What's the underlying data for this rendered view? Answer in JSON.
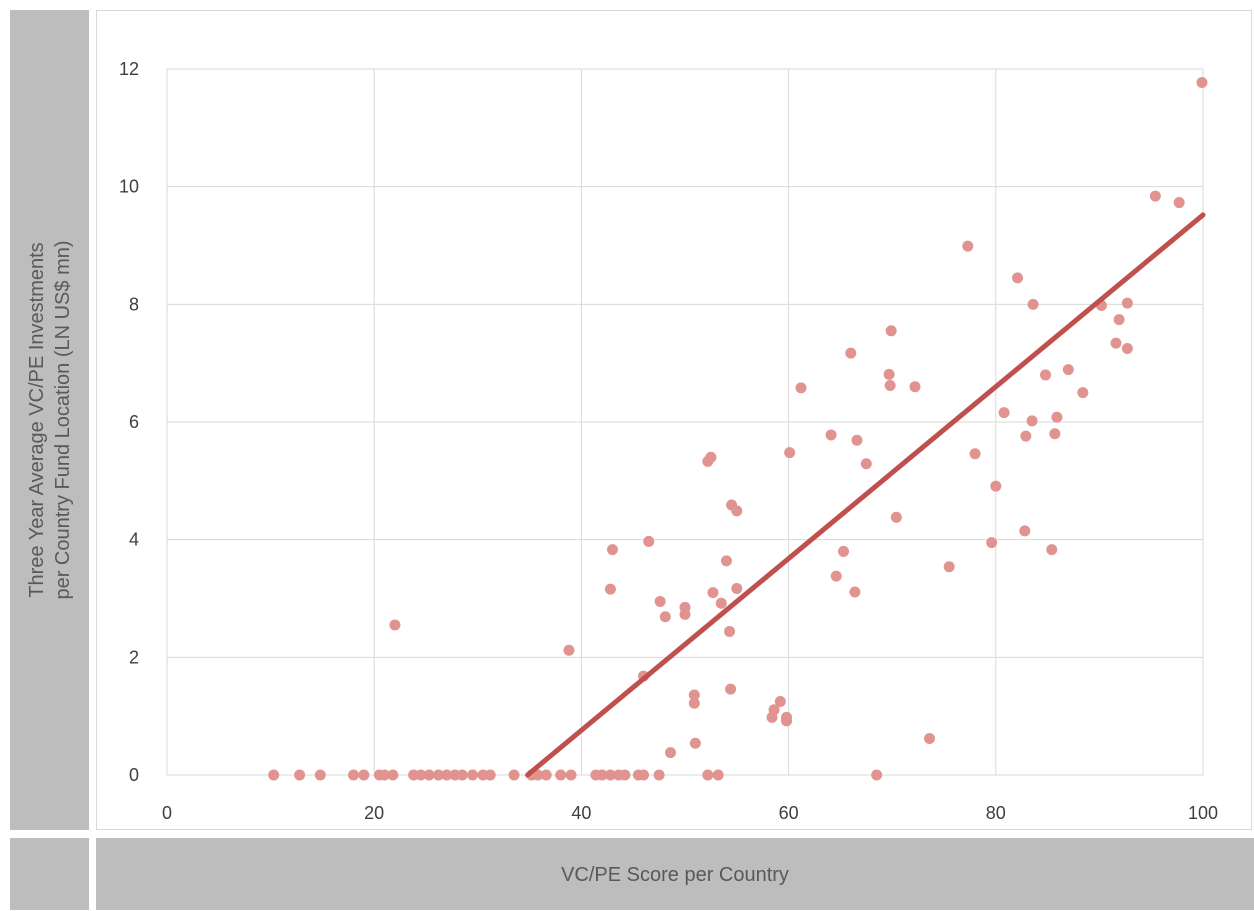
{
  "chart_data": {
    "type": "scatter",
    "xlabel": "VC/PE Score per Country",
    "ylabel_lines": [
      "Three Year Average VC/PE Investments",
      "per Country Fund Location (LN US$ mn)"
    ],
    "xlim": [
      0,
      100
    ],
    "ylim": [
      0,
      12
    ],
    "x_ticks": [
      0,
      20,
      40,
      60,
      80,
      100
    ],
    "y_ticks": [
      0,
      2,
      4,
      6,
      8,
      10,
      12
    ],
    "grid": true,
    "point_color": "#e0938f",
    "trendline_color": "#c0504d",
    "trendline": {
      "x": [
        34.8,
        100
      ],
      "y": [
        0,
        9.52
      ]
    },
    "points": [
      [
        10.3,
        0
      ],
      [
        12.8,
        0
      ],
      [
        14.8,
        0
      ],
      [
        18.0,
        0
      ],
      [
        19.0,
        0
      ],
      [
        20.5,
        0
      ],
      [
        21.0,
        0
      ],
      [
        21.8,
        0
      ],
      [
        23.8,
        0
      ],
      [
        24.5,
        0
      ],
      [
        25.3,
        0
      ],
      [
        26.2,
        0
      ],
      [
        27.0,
        0
      ],
      [
        27.8,
        0
      ],
      [
        28.5,
        0
      ],
      [
        29.5,
        0
      ],
      [
        30.5,
        0
      ],
      [
        31.2,
        0
      ],
      [
        33.5,
        0
      ],
      [
        35.2,
        0
      ],
      [
        35.8,
        0
      ],
      [
        36.6,
        0
      ],
      [
        38.0,
        0
      ],
      [
        39.0,
        0
      ],
      [
        41.4,
        0
      ],
      [
        42.0,
        0
      ],
      [
        42.8,
        0
      ],
      [
        43.6,
        0
      ],
      [
        44.2,
        0
      ],
      [
        45.5,
        0
      ],
      [
        46.0,
        0
      ],
      [
        47.5,
        0
      ],
      [
        52.2,
        0
      ],
      [
        53.2,
        0
      ],
      [
        68.5,
        0
      ],
      [
        22.0,
        2.55
      ],
      [
        38.8,
        2.12
      ],
      [
        42.8,
        3.16
      ],
      [
        43.0,
        3.83
      ],
      [
        46.0,
        1.68
      ],
      [
        46.5,
        3.97
      ],
      [
        47.6,
        2.95
      ],
      [
        48.1,
        2.69
      ],
      [
        48.6,
        0.38
      ],
      [
        50.0,
        2.73
      ],
      [
        50.0,
        2.85
      ],
      [
        50.9,
        1.22
      ],
      [
        50.9,
        1.36
      ],
      [
        51.0,
        0.54
      ],
      [
        52.2,
        5.33
      ],
      [
        52.5,
        5.4
      ],
      [
        52.7,
        3.1
      ],
      [
        53.5,
        2.92
      ],
      [
        54.0,
        3.64
      ],
      [
        54.3,
        2.44
      ],
      [
        54.4,
        1.46
      ],
      [
        54.5,
        4.59
      ],
      [
        55.0,
        4.49
      ],
      [
        55.0,
        3.17
      ],
      [
        58.4,
        0.98
      ],
      [
        58.6,
        1.11
      ],
      [
        59.2,
        1.25
      ],
      [
        59.8,
        0.98
      ],
      [
        59.8,
        0.92
      ],
      [
        60.1,
        5.48
      ],
      [
        61.2,
        6.58
      ],
      [
        64.1,
        5.78
      ],
      [
        64.6,
        3.38
      ],
      [
        65.3,
        3.8
      ],
      [
        66.0,
        7.17
      ],
      [
        66.4,
        3.11
      ],
      [
        66.6,
        5.69
      ],
      [
        67.5,
        5.29
      ],
      [
        69.7,
        6.81
      ],
      [
        69.8,
        6.62
      ],
      [
        69.9,
        7.55
      ],
      [
        70.4,
        4.38
      ],
      [
        72.2,
        6.6
      ],
      [
        73.6,
        0.62
      ],
      [
        75.5,
        3.54
      ],
      [
        77.3,
        8.99
      ],
      [
        78.0,
        5.46
      ],
      [
        79.6,
        3.95
      ],
      [
        80.0,
        4.91
      ],
      [
        80.8,
        6.16
      ],
      [
        82.1,
        8.45
      ],
      [
        82.8,
        4.15
      ],
      [
        82.9,
        5.76
      ],
      [
        83.5,
        6.02
      ],
      [
        83.6,
        8.0
      ],
      [
        84.8,
        6.8
      ],
      [
        85.4,
        3.83
      ],
      [
        85.7,
        5.8
      ],
      [
        85.9,
        6.08
      ],
      [
        87.0,
        6.89
      ],
      [
        88.4,
        6.5
      ],
      [
        90.2,
        7.98
      ],
      [
        91.6,
        7.34
      ],
      [
        91.9,
        7.74
      ],
      [
        92.7,
        8.02
      ],
      [
        92.7,
        7.25
      ],
      [
        95.4,
        9.84
      ],
      [
        97.7,
        9.73
      ],
      [
        99.9,
        11.77
      ]
    ]
  }
}
